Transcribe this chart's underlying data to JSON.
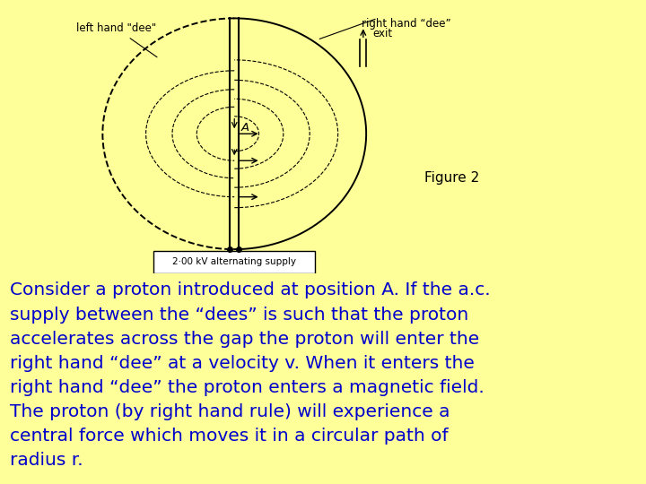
{
  "background_color": "#FFFF99",
  "figure_label": "Figure 2",
  "image_bg": "#FFFFFF",
  "label_left": "left hand \"dee\"",
  "label_right": "right hand “dee”",
  "label_exit": "exit",
  "label_supply": "2·00 kV alternating supply",
  "label_A": "A",
  "body_lines": [
    "Consider a proton introduced at position A. If the a.c.",
    "supply between the “dees” is such that the proton",
    "accelerates across the gap the proton will enter the",
    "right hand “dee” at a velocity v. When it enters the",
    "right hand “dee” the proton enters a magnetic field.",
    "The proton (by right hand rule) will experience a",
    "central force which moves it in a circular path of",
    "radius r."
  ],
  "text_color": "#0000CC",
  "text_fontsize": 14.5,
  "figure_label_fontsize": 11,
  "annotation_fontsize": 8.5
}
